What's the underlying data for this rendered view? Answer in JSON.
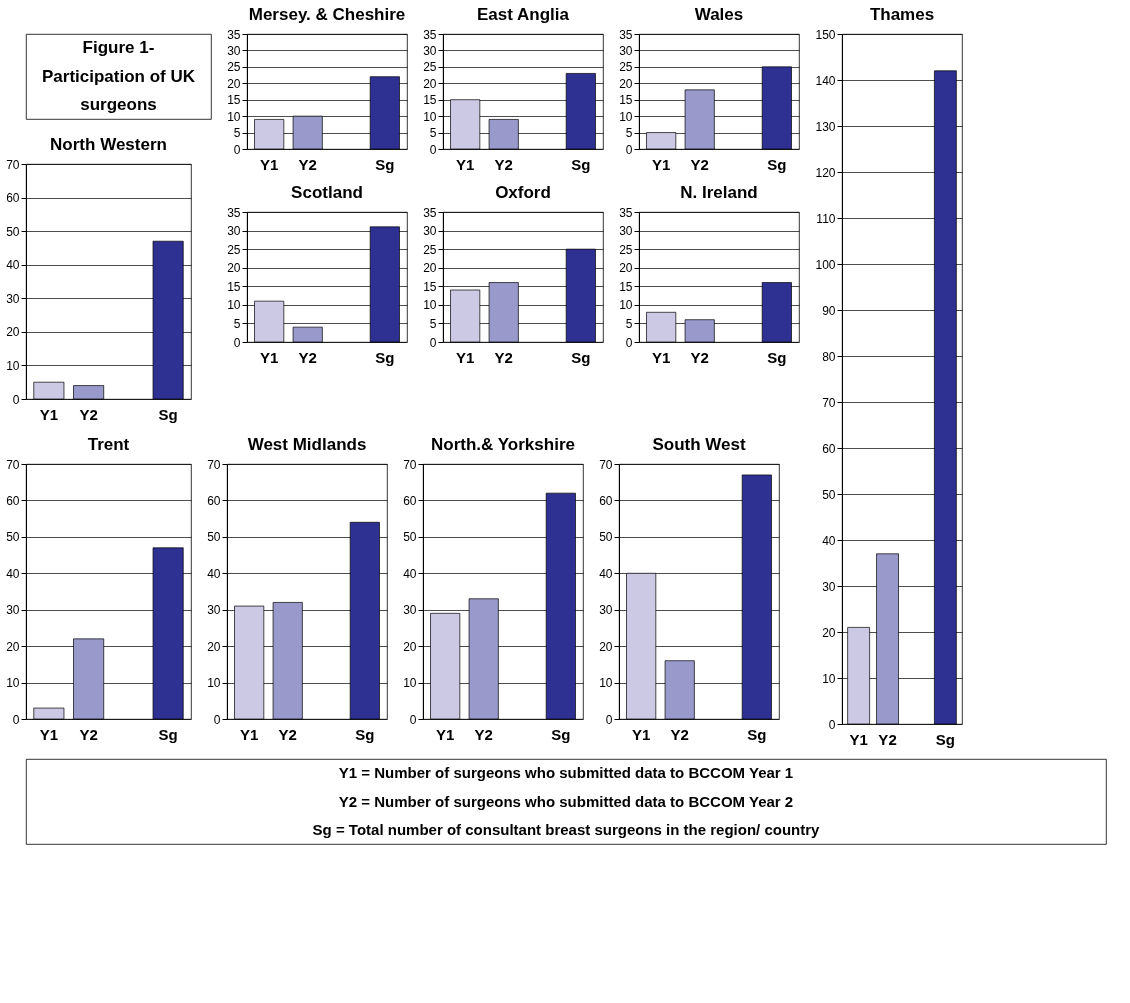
{
  "chart_data": [
    {
      "type": "other",
      "title": "Figure 1- Participation of UK surgeons"
    },
    {
      "type": "bar",
      "title": "North Western",
      "categories": [
        "Y1",
        "Y2",
        null,
        "Sg"
      ],
      "values": [
        5,
        4,
        null,
        47
      ],
      "colors": [
        "#ccc9e4",
        "#9999cc",
        null,
        "#2e3192"
      ],
      "ylim": [
        0,
        70
      ],
      "yticks": [
        0,
        10,
        20,
        30,
        40,
        50,
        60,
        70
      ],
      "grid": "y"
    },
    {
      "type": "bar",
      "title": "Mersey. & Cheshire",
      "categories": [
        "Y1",
        "Y2",
        null,
        "Sg"
      ],
      "values": [
        9,
        10,
        null,
        22
      ],
      "colors": [
        "#ccc9e4",
        "#9999cc",
        null,
        "#2e3192"
      ],
      "ylim": [
        0,
        35
      ],
      "yticks": [
        0,
        5,
        10,
        15,
        20,
        25,
        30,
        35
      ],
      "grid": "y"
    },
    {
      "type": "bar",
      "title": "East Anglia",
      "categories": [
        "Y1",
        "Y2",
        null,
        "Sg"
      ],
      "values": [
        15,
        9,
        null,
        23
      ],
      "colors": [
        "#ccc9e4",
        "#9999cc",
        null,
        "#2e3192"
      ],
      "ylim": [
        0,
        35
      ],
      "yticks": [
        0,
        5,
        10,
        15,
        20,
        25,
        30,
        35
      ],
      "grid": "y"
    },
    {
      "type": "bar",
      "title": "Wales",
      "categories": [
        "Y1",
        "Y2",
        null,
        "Sg"
      ],
      "values": [
        5,
        18,
        null,
        25
      ],
      "colors": [
        "#ccc9e4",
        "#9999cc",
        null,
        "#2e3192"
      ],
      "ylim": [
        0,
        35
      ],
      "yticks": [
        0,
        5,
        10,
        15,
        20,
        25,
        30,
        35
      ],
      "grid": "y"
    },
    {
      "type": "bar",
      "title": "Thames",
      "categories": [
        "Y1",
        "Y2",
        null,
        "Sg"
      ],
      "values": [
        21,
        37,
        null,
        142
      ],
      "colors": [
        "#ccc9e4",
        "#9999cc",
        null,
        "#2e3192"
      ],
      "ylim": [
        0,
        150
      ],
      "yticks": [
        0,
        10,
        20,
        30,
        40,
        50,
        60,
        70,
        80,
        90,
        100,
        110,
        120,
        130,
        140,
        150
      ],
      "grid": "y"
    },
    {
      "type": "bar",
      "title": "Scotland",
      "categories": [
        "Y1",
        "Y2",
        null,
        "Sg"
      ],
      "values": [
        11,
        4,
        null,
        31
      ],
      "colors": [
        "#ccc9e4",
        "#9999cc",
        null,
        "#2e3192"
      ],
      "ylim": [
        0,
        35
      ],
      "yticks": [
        0,
        5,
        10,
        15,
        20,
        25,
        30,
        35
      ],
      "grid": "y"
    },
    {
      "type": "bar",
      "title": "Oxford",
      "categories": [
        "Y1",
        "Y2",
        null,
        "Sg"
      ],
      "values": [
        14,
        16,
        null,
        25
      ],
      "colors": [
        "#ccc9e4",
        "#9999cc",
        null,
        "#2e3192"
      ],
      "ylim": [
        0,
        35
      ],
      "yticks": [
        0,
        5,
        10,
        15,
        20,
        25,
        30,
        35
      ],
      "grid": "y"
    },
    {
      "type": "bar",
      "title": "N. Ireland",
      "categories": [
        "Y1",
        "Y2",
        null,
        "Sg"
      ],
      "values": [
        8,
        6,
        null,
        16
      ],
      "colors": [
        "#ccc9e4",
        "#9999cc",
        null,
        "#2e3192"
      ],
      "ylim": [
        0,
        35
      ],
      "yticks": [
        0,
        5,
        10,
        15,
        20,
        25,
        30,
        35
      ],
      "grid": "y"
    },
    {
      "type": "bar",
      "title": "Trent",
      "categories": [
        "Y1",
        "Y2",
        null,
        "Sg"
      ],
      "values": [
        3,
        22,
        null,
        47
      ],
      "colors": [
        "#ccc9e4",
        "#9999cc",
        null,
        "#2e3192"
      ],
      "ylim": [
        0,
        70
      ],
      "yticks": [
        0,
        10,
        20,
        30,
        40,
        50,
        60,
        70
      ],
      "grid": "y"
    },
    {
      "type": "bar",
      "title": "West Midlands",
      "categories": [
        "Y1",
        "Y2",
        null,
        "Sg"
      ],
      "values": [
        31,
        32,
        null,
        54
      ],
      "colors": [
        "#ccc9e4",
        "#9999cc",
        null,
        "#2e3192"
      ],
      "ylim": [
        0,
        70
      ],
      "yticks": [
        0,
        10,
        20,
        30,
        40,
        50,
        60,
        70
      ],
      "grid": "y"
    },
    {
      "type": "bar",
      "title": "North.& Yorkshire",
      "categories": [
        "Y1",
        "Y2",
        null,
        "Sg"
      ],
      "values": [
        29,
        33,
        null,
        62
      ],
      "colors": [
        "#ccc9e4",
        "#9999cc",
        null,
        "#2e3192"
      ],
      "ylim": [
        0,
        70
      ],
      "yticks": [
        0,
        10,
        20,
        30,
        40,
        50,
        60,
        70
      ],
      "grid": "y"
    },
    {
      "type": "bar",
      "title": "South West",
      "categories": [
        "Y1",
        "Y2",
        null,
        "Sg"
      ],
      "values": [
        40,
        16,
        null,
        67
      ],
      "colors": [
        "#ccc9e4",
        "#9999cc",
        null,
        "#2e3192"
      ],
      "ylim": [
        0,
        70
      ],
      "yticks": [
        0,
        10,
        20,
        30,
        40,
        50,
        60,
        70
      ],
      "grid": "y"
    },
    {
      "type": "other",
      "annotations": [
        "Y1 = Number of surgeons who submitted data to BCCOM Year 1",
        "Y2 = Number of surgeons who submitted data to BCCOM Year 2",
        "Sg = Total number of consultant breast surgeons in the region/ country"
      ]
    }
  ]
}
